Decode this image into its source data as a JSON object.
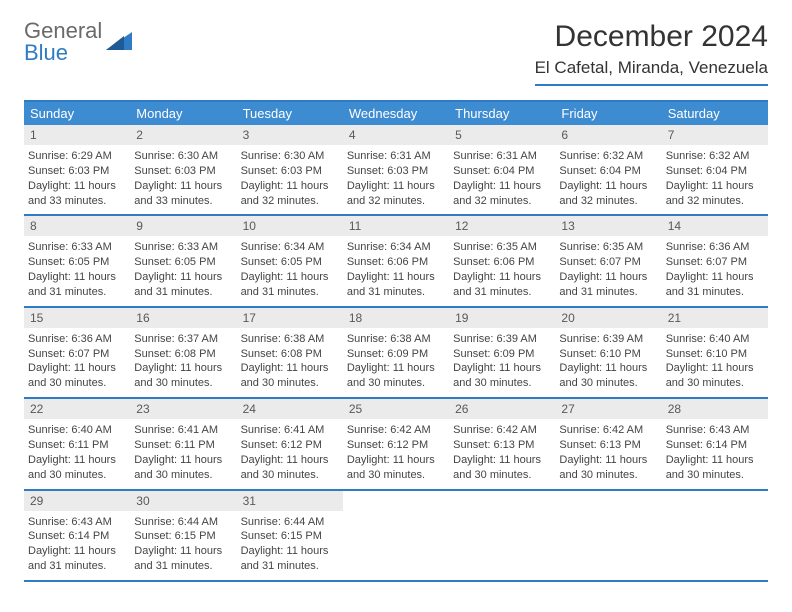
{
  "logo": {
    "line1": "General",
    "line2": "Blue"
  },
  "colors": {
    "accent": "#2f7bc4",
    "header_bg": "#3d8bd0",
    "daynum_bg": "#ebebeb",
    "text": "#333333",
    "logo_gray": "#6a6a6a"
  },
  "title": "December 2024",
  "location": "El Cafetal, Miranda, Venezuela",
  "day_names": [
    "Sunday",
    "Monday",
    "Tuesday",
    "Wednesday",
    "Thursday",
    "Friday",
    "Saturday"
  ],
  "weeks": [
    [
      {
        "num": "1",
        "sunrise": "Sunrise: 6:29 AM",
        "sunset": "Sunset: 6:03 PM",
        "daylight": "Daylight: 11 hours and 33 minutes."
      },
      {
        "num": "2",
        "sunrise": "Sunrise: 6:30 AM",
        "sunset": "Sunset: 6:03 PM",
        "daylight": "Daylight: 11 hours and 33 minutes."
      },
      {
        "num": "3",
        "sunrise": "Sunrise: 6:30 AM",
        "sunset": "Sunset: 6:03 PM",
        "daylight": "Daylight: 11 hours and 32 minutes."
      },
      {
        "num": "4",
        "sunrise": "Sunrise: 6:31 AM",
        "sunset": "Sunset: 6:03 PM",
        "daylight": "Daylight: 11 hours and 32 minutes."
      },
      {
        "num": "5",
        "sunrise": "Sunrise: 6:31 AM",
        "sunset": "Sunset: 6:04 PM",
        "daylight": "Daylight: 11 hours and 32 minutes."
      },
      {
        "num": "6",
        "sunrise": "Sunrise: 6:32 AM",
        "sunset": "Sunset: 6:04 PM",
        "daylight": "Daylight: 11 hours and 32 minutes."
      },
      {
        "num": "7",
        "sunrise": "Sunrise: 6:32 AM",
        "sunset": "Sunset: 6:04 PM",
        "daylight": "Daylight: 11 hours and 32 minutes."
      }
    ],
    [
      {
        "num": "8",
        "sunrise": "Sunrise: 6:33 AM",
        "sunset": "Sunset: 6:05 PM",
        "daylight": "Daylight: 11 hours and 31 minutes."
      },
      {
        "num": "9",
        "sunrise": "Sunrise: 6:33 AM",
        "sunset": "Sunset: 6:05 PM",
        "daylight": "Daylight: 11 hours and 31 minutes."
      },
      {
        "num": "10",
        "sunrise": "Sunrise: 6:34 AM",
        "sunset": "Sunset: 6:05 PM",
        "daylight": "Daylight: 11 hours and 31 minutes."
      },
      {
        "num": "11",
        "sunrise": "Sunrise: 6:34 AM",
        "sunset": "Sunset: 6:06 PM",
        "daylight": "Daylight: 11 hours and 31 minutes."
      },
      {
        "num": "12",
        "sunrise": "Sunrise: 6:35 AM",
        "sunset": "Sunset: 6:06 PM",
        "daylight": "Daylight: 11 hours and 31 minutes."
      },
      {
        "num": "13",
        "sunrise": "Sunrise: 6:35 AM",
        "sunset": "Sunset: 6:07 PM",
        "daylight": "Daylight: 11 hours and 31 minutes."
      },
      {
        "num": "14",
        "sunrise": "Sunrise: 6:36 AM",
        "sunset": "Sunset: 6:07 PM",
        "daylight": "Daylight: 11 hours and 31 minutes."
      }
    ],
    [
      {
        "num": "15",
        "sunrise": "Sunrise: 6:36 AM",
        "sunset": "Sunset: 6:07 PM",
        "daylight": "Daylight: 11 hours and 30 minutes."
      },
      {
        "num": "16",
        "sunrise": "Sunrise: 6:37 AM",
        "sunset": "Sunset: 6:08 PM",
        "daylight": "Daylight: 11 hours and 30 minutes."
      },
      {
        "num": "17",
        "sunrise": "Sunrise: 6:38 AM",
        "sunset": "Sunset: 6:08 PM",
        "daylight": "Daylight: 11 hours and 30 minutes."
      },
      {
        "num": "18",
        "sunrise": "Sunrise: 6:38 AM",
        "sunset": "Sunset: 6:09 PM",
        "daylight": "Daylight: 11 hours and 30 minutes."
      },
      {
        "num": "19",
        "sunrise": "Sunrise: 6:39 AM",
        "sunset": "Sunset: 6:09 PM",
        "daylight": "Daylight: 11 hours and 30 minutes."
      },
      {
        "num": "20",
        "sunrise": "Sunrise: 6:39 AM",
        "sunset": "Sunset: 6:10 PM",
        "daylight": "Daylight: 11 hours and 30 minutes."
      },
      {
        "num": "21",
        "sunrise": "Sunrise: 6:40 AM",
        "sunset": "Sunset: 6:10 PM",
        "daylight": "Daylight: 11 hours and 30 minutes."
      }
    ],
    [
      {
        "num": "22",
        "sunrise": "Sunrise: 6:40 AM",
        "sunset": "Sunset: 6:11 PM",
        "daylight": "Daylight: 11 hours and 30 minutes."
      },
      {
        "num": "23",
        "sunrise": "Sunrise: 6:41 AM",
        "sunset": "Sunset: 6:11 PM",
        "daylight": "Daylight: 11 hours and 30 minutes."
      },
      {
        "num": "24",
        "sunrise": "Sunrise: 6:41 AM",
        "sunset": "Sunset: 6:12 PM",
        "daylight": "Daylight: 11 hours and 30 minutes."
      },
      {
        "num": "25",
        "sunrise": "Sunrise: 6:42 AM",
        "sunset": "Sunset: 6:12 PM",
        "daylight": "Daylight: 11 hours and 30 minutes."
      },
      {
        "num": "26",
        "sunrise": "Sunrise: 6:42 AM",
        "sunset": "Sunset: 6:13 PM",
        "daylight": "Daylight: 11 hours and 30 minutes."
      },
      {
        "num": "27",
        "sunrise": "Sunrise: 6:42 AM",
        "sunset": "Sunset: 6:13 PM",
        "daylight": "Daylight: 11 hours and 30 minutes."
      },
      {
        "num": "28",
        "sunrise": "Sunrise: 6:43 AM",
        "sunset": "Sunset: 6:14 PM",
        "daylight": "Daylight: 11 hours and 30 minutes."
      }
    ],
    [
      {
        "num": "29",
        "sunrise": "Sunrise: 6:43 AM",
        "sunset": "Sunset: 6:14 PM",
        "daylight": "Daylight: 11 hours and 31 minutes."
      },
      {
        "num": "30",
        "sunrise": "Sunrise: 6:44 AM",
        "sunset": "Sunset: 6:15 PM",
        "daylight": "Daylight: 11 hours and 31 minutes."
      },
      {
        "num": "31",
        "sunrise": "Sunrise: 6:44 AM",
        "sunset": "Sunset: 6:15 PM",
        "daylight": "Daylight: 11 hours and 31 minutes."
      },
      {
        "empty": true
      },
      {
        "empty": true
      },
      {
        "empty": true
      },
      {
        "empty": true
      }
    ]
  ]
}
